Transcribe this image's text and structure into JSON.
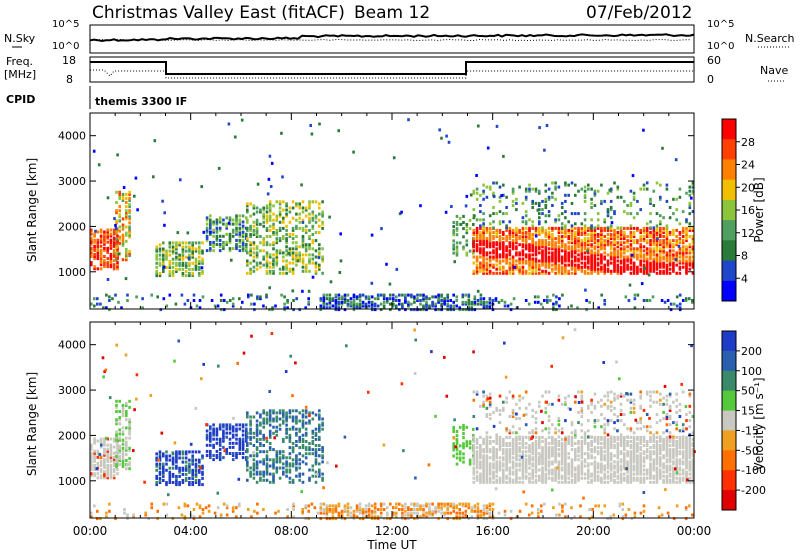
{
  "header": {
    "title": "Christmas Valley East (fitACF)",
    "beam": "Beam 12",
    "date": "07/Feb/2012"
  },
  "top_panels": {
    "left_labels": [
      "N.Sky",
      "Freq.",
      "[MHz]",
      "CPID"
    ],
    "right_labels": [
      "N.Search",
      "Nave"
    ],
    "nsky_ticks": [
      "10^5",
      "10^0"
    ],
    "nsearch_ticks": [
      "10^5",
      "10^0"
    ],
    "freq_ticks": [
      "18",
      "8"
    ],
    "nave_ticks": [
      "60",
      "0"
    ],
    "cpid_text": "themis 3300 IF"
  },
  "chart_data": [
    {
      "type": "heatmap",
      "name": "power",
      "ylabel": "Slant Range [km]",
      "xlabel": "",
      "ylim": [
        180,
        4500
      ],
      "yticks": [
        "1000",
        "2000",
        "3000",
        "4000"
      ],
      "colorbar": {
        "label": "Power [dB]",
        "ticks": [
          "4",
          "8",
          "12",
          "16",
          "20",
          "24",
          "28"
        ],
        "colors": [
          "#0000ff",
          "#1e46c8",
          "#2a7a3a",
          "#4fa060",
          "#8cc43c",
          "#f0c000",
          "#ff8000",
          "#ff4000",
          "#ff0000"
        ]
      }
    },
    {
      "type": "heatmap",
      "name": "velocity",
      "ylabel": "Slant Range [km]",
      "xlabel": "Time UT",
      "ylim": [
        180,
        4500
      ],
      "yticks": [
        "1000",
        "2000",
        "3000",
        "4000"
      ],
      "xticks": [
        "00:00",
        "04:00",
        "08:00",
        "12:00",
        "16:00",
        "20:00",
        "00:00"
      ],
      "colorbar": {
        "label": "Velocity [m s⁻¹]",
        "ticks": [
          "200",
          "100",
          "50",
          "15",
          "-15",
          "-50",
          "-100",
          "-200"
        ],
        "colors": [
          "#1f3cc8",
          "#2a5fb0",
          "#3a8a6a",
          "#55c83c",
          "#c8c8c0",
          "#f0a020",
          "#ff7000",
          "#ff3000",
          "#e00000"
        ]
      }
    }
  ]
}
